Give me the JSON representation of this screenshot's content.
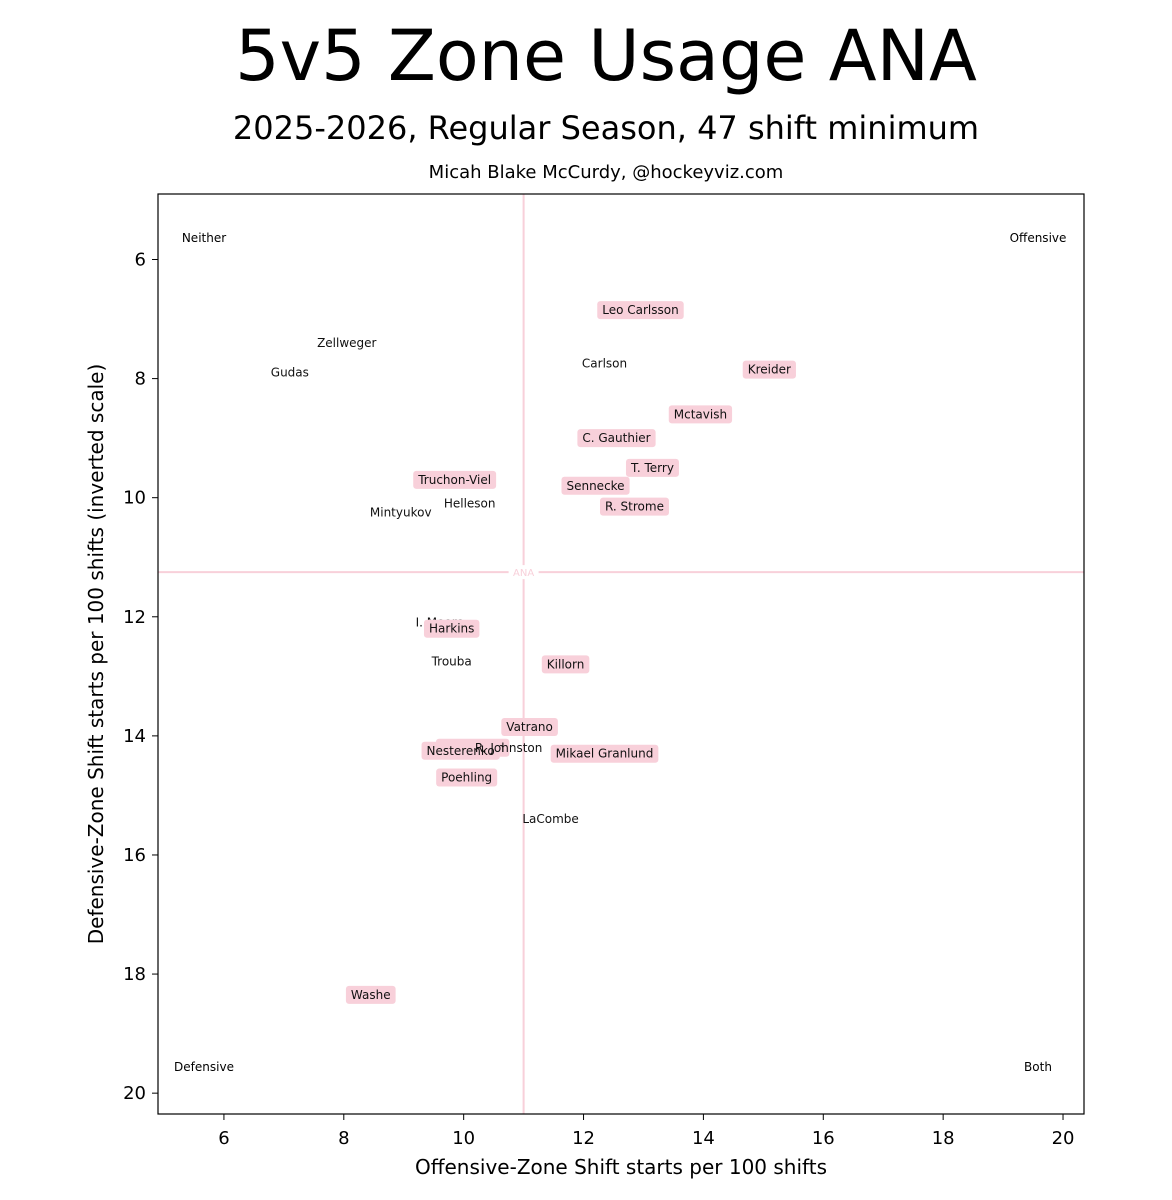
{
  "chart_data": {
    "type": "scatter",
    "title": "5v5 Zone Usage ANA",
    "subtitle": "2025-2026, Regular Season, 47 shift minimum",
    "credit": "Micah Blake McCurdy, @hockeyviz.com",
    "xlabel": "Offensive-Zone Shift starts per 100 shifts",
    "ylabel": "Defensive-Zone Shift starts per 100 shifts (inverted scale)",
    "xlim": [
      4.9,
      20.35
    ],
    "ylim": [
      4.9,
      20.35
    ],
    "y_inverted": true,
    "grid": false,
    "xticks": [
      6,
      8,
      10,
      12,
      14,
      16,
      18,
      20
    ],
    "yticks": [
      6,
      8,
      10,
      12,
      14,
      16,
      18,
      20
    ],
    "team_reference": {
      "label": "ANA",
      "x": 11.0,
      "y": 11.25,
      "color": "#f8d0da"
    },
    "quadrants": [
      {
        "label": "Neither",
        "position": "top-left"
      },
      {
        "label": "Offensive",
        "position": "top-right"
      },
      {
        "label": "Defensive",
        "position": "bottom-left"
      },
      {
        "label": "Both",
        "position": "bottom-right"
      }
    ],
    "highlight_color": "#f8d0da",
    "points": [
      {
        "label": "Leo Carlsson",
        "x": 12.95,
        "y": 6.85,
        "highlight": true
      },
      {
        "label": "Zellweger",
        "x": 8.05,
        "y": 7.4,
        "highlight": false
      },
      {
        "label": "Carlson",
        "x": 12.35,
        "y": 7.75,
        "highlight": false
      },
      {
        "label": "Kreider",
        "x": 15.1,
        "y": 7.85,
        "highlight": true
      },
      {
        "label": "Gudas",
        "x": 7.1,
        "y": 7.9,
        "highlight": false
      },
      {
        "label": "Mctavish",
        "x": 13.95,
        "y": 8.6,
        "highlight": true
      },
      {
        "label": "C. Gauthier",
        "x": 12.55,
        "y": 9.0,
        "highlight": true
      },
      {
        "label": "T. Terry",
        "x": 13.15,
        "y": 9.5,
        "highlight": true
      },
      {
        "label": "Truchon-Viel",
        "x": 9.85,
        "y": 9.7,
        "highlight": true
      },
      {
        "label": "Sennecke",
        "x": 12.2,
        "y": 9.8,
        "highlight": true
      },
      {
        "label": "Helleson",
        "x": 10.1,
        "y": 10.1,
        "highlight": false
      },
      {
        "label": "R. Strome",
        "x": 12.85,
        "y": 10.15,
        "highlight": true
      },
      {
        "label": "Mintyukov",
        "x": 8.95,
        "y": 10.25,
        "highlight": false
      },
      {
        "label": "I. Moore",
        "x": 9.6,
        "y": 12.1,
        "highlight": false
      },
      {
        "label": "Harkins",
        "x": 9.8,
        "y": 12.2,
        "highlight": true
      },
      {
        "label": "Trouba",
        "x": 9.8,
        "y": 12.75,
        "highlight": false
      },
      {
        "label": "Killorn",
        "x": 11.7,
        "y": 12.8,
        "highlight": true
      },
      {
        "label": "Vatrano",
        "x": 11.1,
        "y": 13.85,
        "highlight": true
      },
      {
        "label": "Pettersson",
        "x": 10.15,
        "y": 14.2,
        "highlight": true
      },
      {
        "label": "Nesterenko",
        "x": 9.95,
        "y": 14.25,
        "highlight": true
      },
      {
        "label": "R. Johnston",
        "x": 10.75,
        "y": 14.2,
        "highlight": false
      },
      {
        "label": "Mikael Granlund",
        "x": 12.35,
        "y": 14.3,
        "highlight": true
      },
      {
        "label": "Poehling",
        "x": 10.05,
        "y": 14.7,
        "highlight": true
      },
      {
        "label": "LaCombe",
        "x": 11.45,
        "y": 15.4,
        "highlight": false
      },
      {
        "label": "Washe",
        "x": 8.45,
        "y": 18.35,
        "highlight": true
      }
    ]
  }
}
